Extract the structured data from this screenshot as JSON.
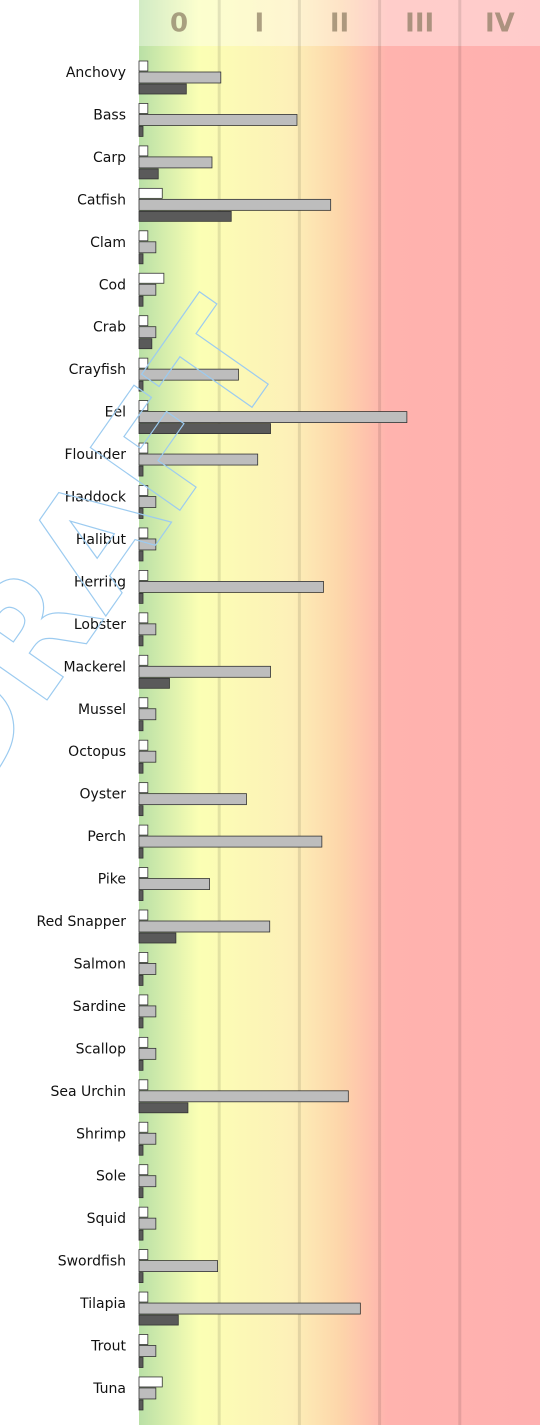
{
  "chart_data": {
    "type": "bar",
    "orientation": "horizontal",
    "watermark": "DRAFT",
    "zones": [
      "0",
      "I",
      "II",
      "III",
      "IV"
    ],
    "xlim": [
      0,
      5
    ],
    "categories": [
      "Anchovy",
      "Bass",
      "Carp",
      "Catfish",
      "Clam",
      "Cod",
      "Crab",
      "Crayfish",
      "Eel",
      "Flounder",
      "Haddock",
      "Halibut",
      "Herring",
      "Lobster",
      "Mackerel",
      "Mussel",
      "Octopus",
      "Oyster",
      "Perch",
      "Pike",
      "Red Snapper",
      "Salmon",
      "Sardine",
      "Scallop",
      "Sea Urchin",
      "Shrimp",
      "Sole",
      "Squid",
      "Swordfish",
      "Tilapia",
      "Trout",
      "Tuna"
    ],
    "series": [
      {
        "color": "#ffffff",
        "values": [
          0.11,
          0.11,
          0.11,
          0.29,
          0.11,
          0.31,
          0.11,
          0.11,
          0.11,
          0.11,
          0.11,
          0.11,
          0.11,
          0.11,
          0.11,
          0.11,
          0.11,
          0.11,
          0.11,
          0.11,
          0.11,
          0.11,
          0.11,
          0.11,
          0.11,
          0.11,
          0.11,
          0.11,
          0.11,
          0.11,
          0.11,
          0.29
        ]
      },
      {
        "color": "#bdbdbd",
        "values": [
          1.02,
          1.97,
          0.91,
          2.39,
          0.21,
          0.21,
          0.21,
          1.24,
          3.34,
          1.48,
          0.21,
          0.21,
          2.3,
          0.21,
          1.64,
          0.21,
          0.21,
          1.34,
          2.28,
          0.88,
          1.63,
          0.21,
          0.21,
          0.21,
          2.61,
          0.21,
          0.21,
          0.21,
          0.98,
          2.76,
          0.21,
          0.21
        ]
      },
      {
        "color": "#5a5a5a",
        "values": [
          0.59,
          0.05,
          0.24,
          1.15,
          0.05,
          0.05,
          0.16,
          0.05,
          1.64,
          0.05,
          0.05,
          0.05,
          0.05,
          0.05,
          0.38,
          0.05,
          0.05,
          0.05,
          0.05,
          0.05,
          0.46,
          0.05,
          0.05,
          0.05,
          0.61,
          0.05,
          0.05,
          0.05,
          0.05,
          0.49,
          0.05,
          0.05
        ]
      }
    ]
  }
}
